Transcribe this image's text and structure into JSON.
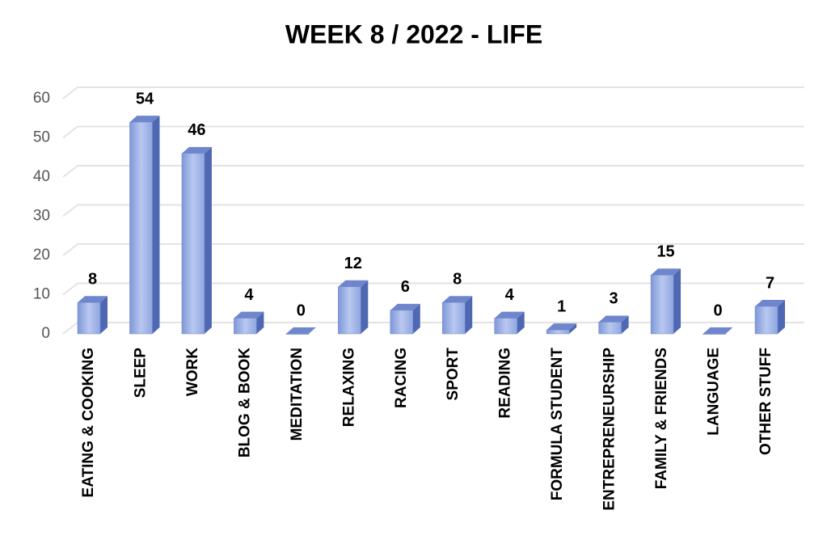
{
  "chart_data": {
    "type": "bar3d",
    "title": "WEEK 8  / 2022  - LIFE",
    "categories": [
      "EATING & COOKING",
      "SLEEP",
      "WORK",
      "BLOG & BOOK",
      "MEDITATION",
      "RELAXING",
      "RACING",
      "SPORT",
      "READING",
      "FORMULA STUDENT",
      "ENTREPRENEURSHIP",
      "FAMILY & FRIENDS",
      "LANGUAGE",
      "OTHER STUFF"
    ],
    "values": [
      8,
      54,
      46,
      4,
      0,
      12,
      6,
      8,
      4,
      1,
      3,
      15,
      0,
      7
    ],
    "color": "#8fa6e0",
    "ylim": [
      0,
      60
    ],
    "yticks": [
      0,
      10,
      20,
      30,
      40,
      50,
      60
    ],
    "grid": true,
    "data_labels": true
  }
}
